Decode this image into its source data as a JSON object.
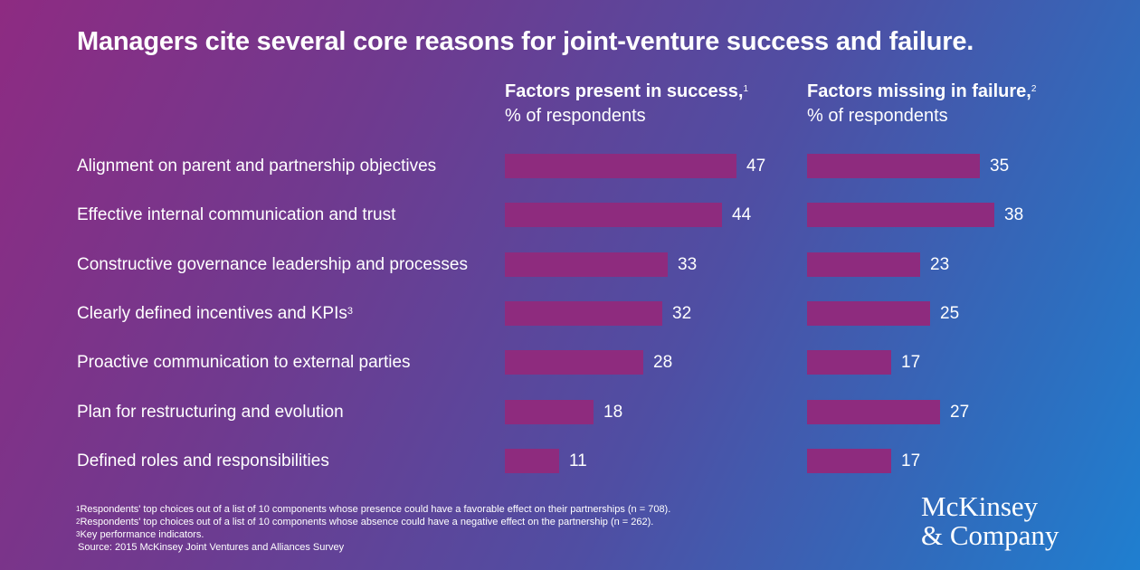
{
  "chart_data": {
    "type": "bar",
    "orientation": "horizontal",
    "title": "Managers cite several core reasons for joint-venture success and failure.",
    "categories": [
      "Alignment on parent and partnership objectives",
      "Effective internal communication and trust",
      "Constructive governance leadership and processes",
      "Clearly defined incentives and KPIs",
      "Proactive communication to external parties",
      "Plan for restructuring and evolution",
      "Defined roles and responsibilities"
    ],
    "category_superscripts": [
      "",
      "",
      "",
      "3",
      "",
      "",
      ""
    ],
    "series": [
      {
        "name": "Factors present in success,",
        "superscript": "1",
        "unit": "% of respondents",
        "values": [
          47,
          44,
          33,
          32,
          28,
          18,
          11
        ]
      },
      {
        "name": "Factors missing in failure,",
        "superscript": "2",
        "unit": "% of respondents",
        "values": [
          35,
          38,
          23,
          25,
          17,
          27,
          17
        ]
      }
    ],
    "bar_color": "#8e2b7e",
    "xlim": [
      0,
      50
    ]
  },
  "footnotes": [
    {
      "mark": "1",
      "text": "Respondents' top choices out of a list of 10 components whose presence could have a favorable effect on their partnerships (n = 708)."
    },
    {
      "mark": "2",
      "text": "Respondents' top choices out of a list of 10 components whose absence could have a negative effect on the partnership (n = 262)."
    },
    {
      "mark": "3",
      "text": "Key performance indicators."
    }
  ],
  "source": "Source: 2015 McKinsey Joint Ventures and Alliances Survey",
  "logo": {
    "line1": "McKinsey",
    "line2": "& Company"
  }
}
